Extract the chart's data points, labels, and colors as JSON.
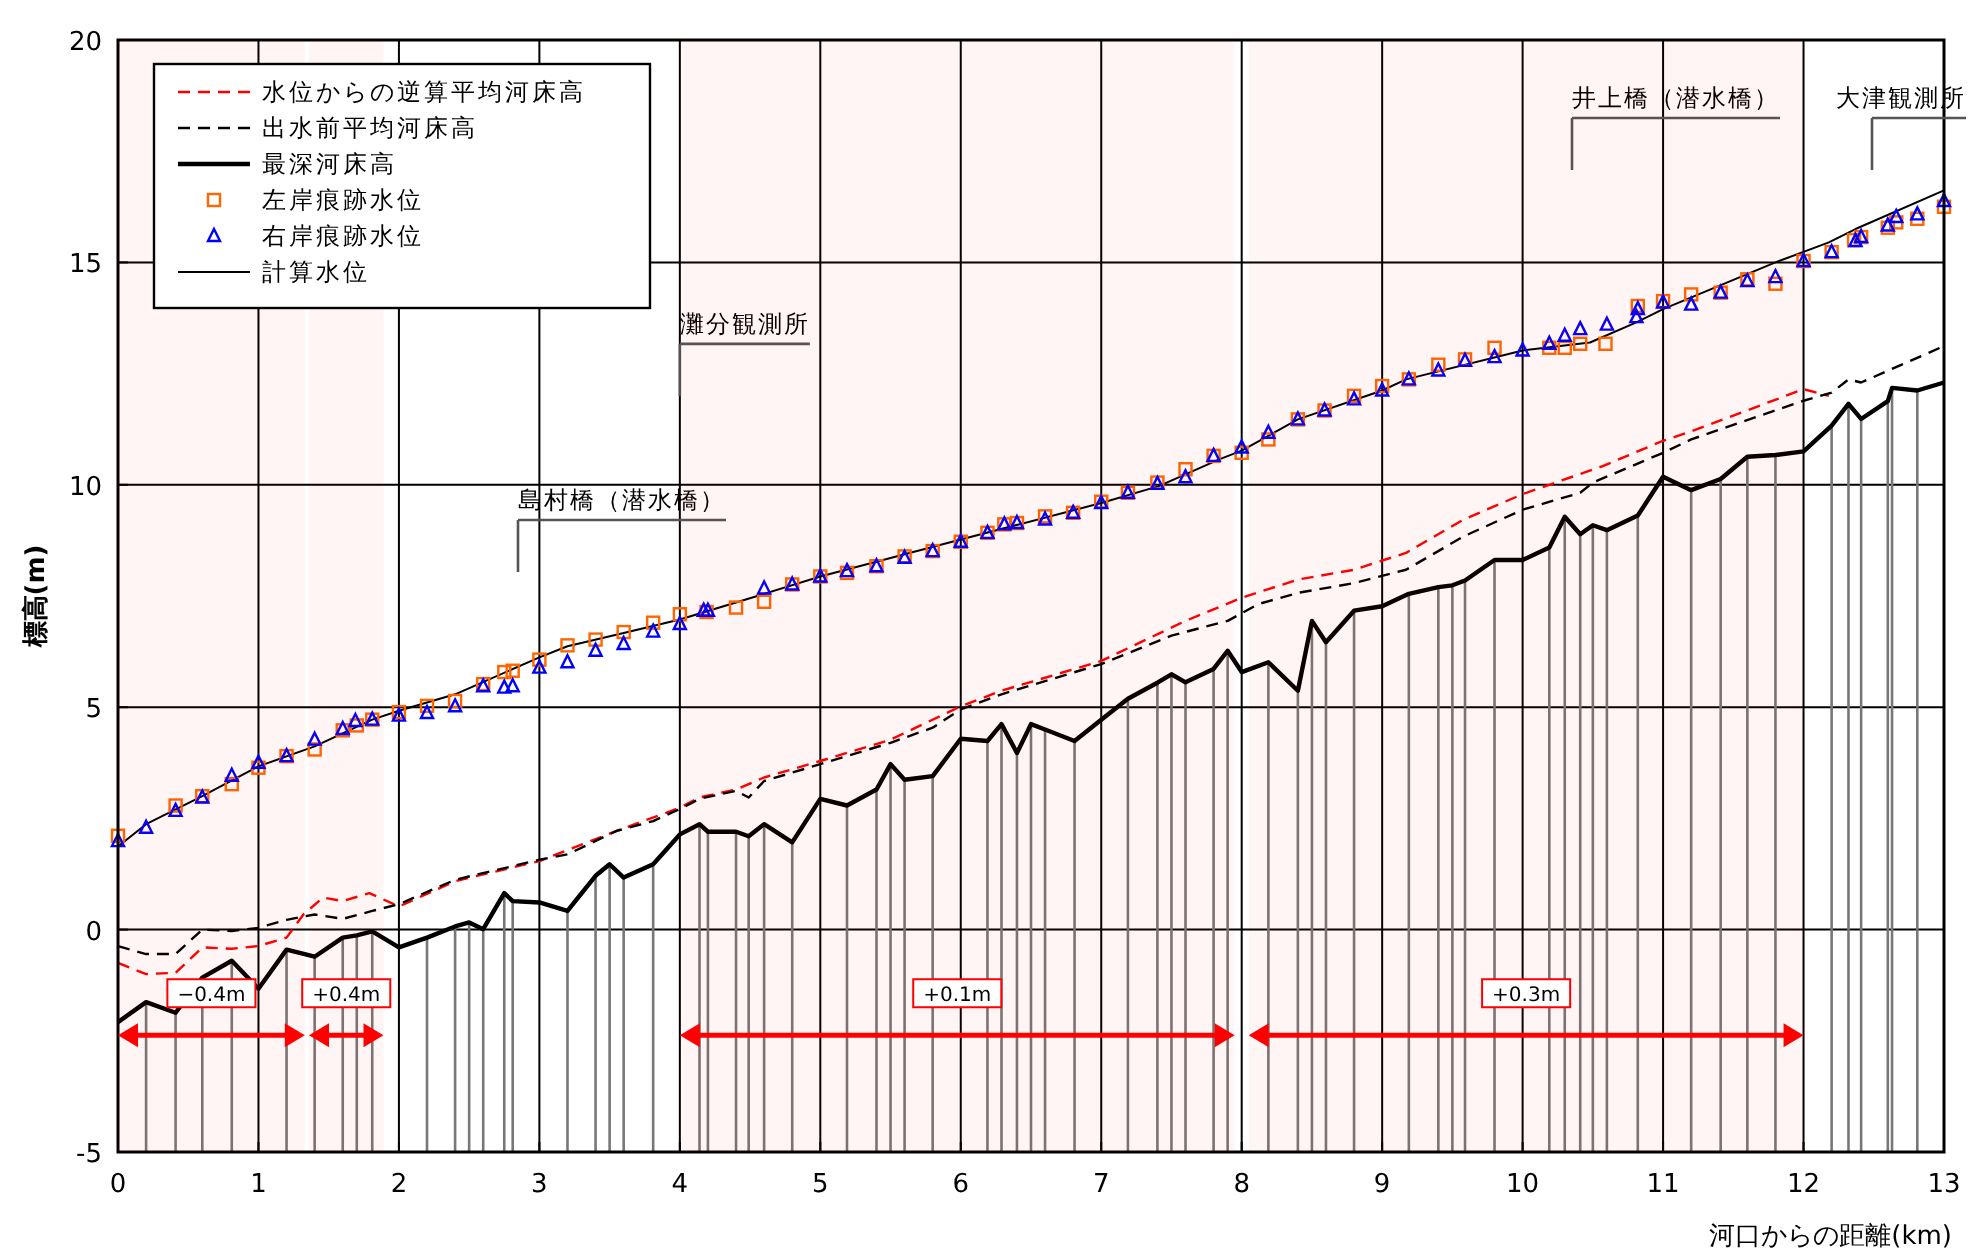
{
  "chart_data": {
    "type": "line",
    "xlabel": "河口からの距離(km)",
    "ylabel": "標高(m)",
    "xlim": [
      0,
      13
    ],
    "xticks": [
      0,
      1,
      2,
      3,
      4,
      5,
      6,
      7,
      8,
      9,
      10,
      11,
      12,
      13
    ],
    "ylim": [
      -5,
      20
    ],
    "yticks": [
      -5,
      0,
      5,
      10,
      15,
      20
    ],
    "grid": true,
    "legend": "top left",
    "series": [
      {
        "name": "水位からの逆算平均河床高",
        "line_style": "dashed",
        "color": "#ff0000",
        "x": [
          0,
          0.2,
          0.41,
          0.6,
          0.81,
          1.0,
          1.2,
          1.32,
          1.46,
          1.6,
          1.79,
          2.0,
          2.4,
          3.0,
          3.55,
          4.0,
          4.14,
          4.4,
          4.6,
          5.0,
          5.5,
          6.0,
          6.29,
          7.0,
          7.6,
          8.0,
          8.4,
          8.8,
          9.17,
          9.58,
          10.0,
          10.57,
          11.0,
          11.2,
          12.0,
          12.18
        ],
        "values": [
          -0.75,
          -1.0,
          -0.97,
          -0.4,
          -0.43,
          -0.37,
          -0.18,
          0.34,
          0.72,
          0.64,
          0.82,
          0.52,
          1.09,
          1.54,
          2.22,
          2.74,
          2.97,
          3.15,
          3.42,
          3.79,
          4.27,
          5.02,
          5.37,
          6.04,
          6.94,
          7.46,
          7.87,
          8.09,
          8.47,
          9.22,
          9.79,
          10.42,
          10.99,
          11.2,
          12.15,
          12.0
        ]
      },
      {
        "name": "出水前平均河床高",
        "line_style": "dashed",
        "color": "#000000",
        "x": [
          0,
          0.2,
          0.41,
          0.6,
          0.81,
          1.0,
          1.2,
          1.4,
          1.6,
          1.81,
          2.0,
          2.4,
          3.0,
          3.2,
          3.55,
          3.81,
          4.0,
          4.14,
          4.4,
          4.49,
          4.6,
          5.0,
          5.5,
          5.8,
          6.0,
          6.29,
          7.0,
          7.5,
          7.9,
          8.12,
          8.4,
          8.8,
          9.17,
          9.58,
          10.0,
          10.41,
          10.5,
          11.0,
          11.2,
          12.0,
          12.2,
          12.32,
          12.41,
          13.0
        ],
        "values": [
          -0.37,
          -0.55,
          -0.55,
          0,
          -0.03,
          0.04,
          0.22,
          0.34,
          0.24,
          0.42,
          0.57,
          1.12,
          1.57,
          1.69,
          2.22,
          2.44,
          2.71,
          2.94,
          3.12,
          2.97,
          3.34,
          3.72,
          4.2,
          4.54,
          4.95,
          5.29,
          5.97,
          6.61,
          6.94,
          7.32,
          7.57,
          7.79,
          8.09,
          8.84,
          9.44,
          9.82,
          10.05,
          10.72,
          11.02,
          11.89,
          12.07,
          12.37,
          12.3,
          13.12
        ]
      },
      {
        "name": "最深河床高",
        "line_style": "solid",
        "color": "#000000",
        "x": [
          0,
          0.2,
          0.41,
          0.6,
          0.81,
          1.0,
          1.2,
          1.4,
          1.6,
          1.7,
          1.81,
          2.0,
          2.2,
          2.4,
          2.5,
          2.6,
          2.75,
          2.81,
          3.0,
          3.2,
          3.4,
          3.5,
          3.6,
          3.81,
          4.0,
          4.14,
          4.2,
          4.4,
          4.49,
          4.6,
          4.8,
          5.0,
          5.19,
          5.4,
          5.5,
          5.6,
          5.8,
          6.0,
          6.19,
          6.29,
          6.4,
          6.5,
          6.6,
          6.81,
          7.0,
          7.19,
          7.4,
          7.5,
          7.6,
          7.8,
          7.9,
          8.0,
          8.19,
          8.4,
          8.5,
          8.6,
          8.8,
          9.0,
          9.19,
          9.4,
          9.5,
          9.59,
          9.8,
          10.0,
          10.19,
          10.3,
          10.41,
          10.5,
          10.6,
          10.82,
          11.0,
          11.2,
          11.41,
          11.6,
          11.8,
          12.0,
          12.2,
          12.32,
          12.41,
          12.6,
          12.63,
          12.81,
          13.0
        ],
        "values": [
          -2.08,
          -1.63,
          -1.87,
          -1.08,
          -0.7,
          -1.33,
          -0.45,
          -0.61,
          -0.18,
          -0.13,
          -0.04,
          -0.4,
          -0.18,
          0.07,
          0.16,
          0.01,
          0.82,
          0.64,
          0.61,
          0.42,
          1.21,
          1.47,
          1.17,
          1.47,
          2.14,
          2.37,
          2.2,
          2.2,
          2.1,
          2.37,
          1.96,
          2.94,
          2.79,
          3.15,
          3.72,
          3.37,
          3.45,
          4.29,
          4.24,
          4.62,
          3.97,
          4.62,
          4.5,
          4.24,
          4.72,
          5.19,
          5.55,
          5.74,
          5.56,
          5.86,
          6.27,
          5.79,
          6.01,
          5.37,
          6.94,
          6.46,
          7.17,
          7.27,
          7.55,
          7.7,
          7.74,
          7.85,
          8.31,
          8.31,
          8.59,
          9.28,
          8.89,
          9.09,
          8.98,
          9.31,
          10.18,
          9.88,
          10.13,
          10.63,
          10.67,
          10.75,
          11.33,
          11.82,
          11.48,
          11.88,
          12.18,
          12.12,
          12.3
        ]
      },
      {
        "name": "左岸痕跡水位",
        "type": "scatter",
        "marker": "square",
        "color": "#ff6600",
        "x": [
          0,
          0.41,
          0.6,
          0.81,
          1.0,
          1.2,
          1.4,
          1.6,
          1.7,
          1.81,
          2.0,
          2.2,
          2.4,
          2.6,
          2.75,
          2.81,
          3.0,
          3.2,
          3.4,
          3.6,
          3.81,
          4.0,
          4.19,
          4.4,
          4.6,
          4.8,
          5.0,
          5.19,
          5.4,
          5.6,
          5.8,
          6.0,
          6.19,
          6.31,
          6.4,
          6.6,
          6.8,
          7.0,
          7.19,
          7.4,
          7.6,
          7.8,
          8.0,
          8.19,
          8.4,
          8.59,
          8.8,
          9.0,
          9.19,
          9.4,
          9.59,
          9.8,
          10.19,
          10.3,
          10.41,
          10.59,
          10.82,
          11.0,
          11.2,
          11.41,
          11.6,
          11.8,
          12.0,
          12.2,
          12.36,
          12.41,
          12.6,
          12.66,
          12.81,
          13.0
        ],
        "values": [
          2.11,
          2.79,
          3.0,
          3.27,
          3.64,
          3.9,
          4.05,
          4.48,
          4.59,
          4.72,
          4.89,
          5.03,
          5.14,
          5.52,
          5.79,
          5.82,
          6.07,
          6.39,
          6.52,
          6.69,
          6.9,
          7.09,
          7.14,
          7.24,
          7.37,
          7.76,
          7.94,
          8.02,
          8.17,
          8.39,
          8.51,
          8.72,
          8.92,
          9.11,
          9.14,
          9.29,
          9.37,
          9.62,
          9.82,
          10.05,
          10.35,
          10.65,
          10.72,
          11.02,
          11.47,
          11.67,
          12.0,
          12.22,
          12.37,
          12.7,
          12.82,
          13.08,
          13.08,
          13.08,
          13.17,
          13.17,
          14.02,
          14.13,
          14.28,
          14.32,
          14.62,
          14.52,
          15.03,
          15.23,
          15.5,
          15.57,
          15.78,
          15.9,
          15.98,
          16.25
        ]
      },
      {
        "name": "右岸痕跡水位",
        "type": "scatter",
        "marker": "triangle",
        "color": "#0000ff",
        "x": [
          0,
          0.2,
          0.41,
          0.6,
          0.81,
          1.0,
          1.2,
          1.4,
          1.6,
          1.69,
          1.81,
          2.0,
          2.2,
          2.4,
          2.6,
          2.75,
          2.81,
          3.0,
          3.2,
          3.4,
          3.6,
          3.81,
          4.0,
          4.17,
          4.2,
          4.6,
          4.8,
          5.0,
          5.19,
          5.4,
          5.6,
          5.8,
          6.0,
          6.19,
          6.31,
          6.4,
          6.6,
          6.8,
          7.0,
          7.19,
          7.4,
          7.6,
          7.8,
          8.0,
          8.19,
          8.4,
          8.59,
          8.8,
          9.0,
          9.19,
          9.4,
          9.59,
          9.8,
          10.0,
          10.19,
          10.3,
          10.41,
          10.6,
          10.81,
          10.82,
          11.0,
          11.2,
          11.41,
          11.6,
          11.8,
          12.0,
          12.2,
          12.37,
          12.41,
          12.6,
          12.66,
          12.81,
          13.0
        ],
        "values": [
          1.99,
          2.29,
          2.67,
          2.97,
          3.46,
          3.75,
          3.9,
          4.27,
          4.51,
          4.69,
          4.72,
          4.81,
          4.87,
          5.02,
          5.47,
          5.44,
          5.47,
          5.89,
          6.01,
          6.27,
          6.42,
          6.7,
          6.87,
          7.17,
          7.17,
          7.67,
          7.76,
          7.94,
          8.06,
          8.17,
          8.36,
          8.51,
          8.72,
          8.92,
          9.11,
          9.14,
          9.22,
          9.37,
          9.59,
          9.82,
          10.02,
          10.17,
          10.65,
          10.84,
          11.17,
          11.47,
          11.67,
          11.92,
          12.12,
          12.37,
          12.57,
          12.79,
          12.87,
          13.02,
          13.17,
          13.35,
          13.5,
          13.6,
          13.77,
          13.95,
          14.1,
          14.05,
          14.32,
          14.58,
          14.67,
          15.03,
          15.23,
          15.48,
          15.57,
          15.83,
          16.02,
          16.08,
          16.38
        ]
      },
      {
        "name": "計算水位",
        "line_style": "solid",
        "color": "#000000",
        "x": [
          0,
          0.2,
          0.6,
          1.0,
          1.4,
          1.81,
          2.0,
          2.4,
          3.0,
          3.2,
          3.6,
          4.0,
          4.54,
          5.0,
          6.0,
          7.0,
          7.41,
          7.84,
          8.0,
          8.19,
          8.4,
          9.0,
          9.17,
          10.0,
          10.48,
          10.81,
          11.0,
          11.8,
          12.18,
          12.37,
          13.0
        ],
        "values": [
          1.87,
          2.37,
          3.0,
          3.67,
          4.12,
          4.72,
          4.92,
          5.29,
          6.12,
          6.37,
          6.67,
          6.97,
          7.49,
          7.94,
          8.77,
          9.59,
          9.97,
          10.57,
          10.77,
          11.1,
          11.47,
          12.12,
          12.37,
          13.02,
          13.2,
          13.65,
          13.95,
          15.0,
          15.45,
          15.75,
          16.62
        ]
      }
    ],
    "annotations": [
      "島村橋（潜水橋）",
      {
        "text": "灘分観測所",
        "x": 4.0,
        "y": 12.0
      },
      "井上橋（潜水橋）",
      "大津観測所"
    ],
    "ref_lines": [
      {
        "axis": "x",
        "value": 0.2,
        "color": "#777777"
      },
      {
        "axis": "x",
        "value": 0.41,
        "color": "#777777"
      },
      {
        "axis": "x",
        "value": 0.6,
        "color": "#777777"
      },
      {
        "axis": "x",
        "value": 0.81,
        "color": "#777777"
      },
      {
        "axis": "x",
        "value": 1.2,
        "color": "#777777"
      },
      {
        "axis": "x",
        "value": 1.4,
        "color": "#777777"
      },
      {
        "axis": "x",
        "value": 1.6,
        "color": "#777777"
      },
      {
        "axis": "x",
        "value": 1.7,
        "color": "#777777"
      },
      {
        "axis": "x",
        "value": 1.81,
        "color": "#777777"
      },
      {
        "axis": "x",
        "value": 2.2,
        "color": "#777777"
      },
      {
        "axis": "x",
        "value": 2.4,
        "color": "#777777"
      },
      {
        "axis": "x",
        "value": 2.5,
        "color": "#777777"
      },
      {
        "axis": "x",
        "value": 2.6,
        "color": "#777777"
      },
      {
        "axis": "x",
        "value": 2.75,
        "color": "#777777"
      },
      {
        "axis": "x",
        "value": 2.81,
        "color": "#777777"
      },
      {
        "axis": "x",
        "value": 3.2,
        "color": "#777777"
      },
      {
        "axis": "x",
        "value": 3.4,
        "color": "#777777"
      },
      {
        "axis": "x",
        "value": 3.5,
        "color": "#777777"
      },
      {
        "axis": "x",
        "value": 3.6,
        "color": "#777777"
      },
      {
        "axis": "x",
        "value": 3.81,
        "color": "#777777"
      },
      {
        "axis": "x",
        "value": 4.14,
        "color": "#777777"
      },
      {
        "axis": "x",
        "value": 4.2,
        "color": "#777777"
      },
      {
        "axis": "x",
        "value": 4.4,
        "color": "#777777"
      },
      {
        "axis": "x",
        "value": 4.49,
        "color": "#777777"
      },
      {
        "axis": "x",
        "value": 4.6,
        "color": "#777777"
      },
      {
        "axis": "x",
        "value": 4.8,
        "color": "#777777"
      },
      {
        "axis": "x",
        "value": 5.19,
        "color": "#777777"
      },
      {
        "axis": "x",
        "value": 5.4,
        "color": "#777777"
      },
      {
        "axis": "x",
        "value": 5.5,
        "color": "#777777"
      },
      {
        "axis": "x",
        "value": 5.6,
        "color": "#777777"
      },
      {
        "axis": "x",
        "value": 5.8,
        "color": "#777777"
      },
      {
        "axis": "x",
        "value": 6.19,
        "color": "#777777"
      },
      {
        "axis": "x",
        "value": 6.29,
        "color": "#777777"
      },
      {
        "axis": "x",
        "value": 6.4,
        "color": "#777777"
      },
      {
        "axis": "x",
        "value": 6.5,
        "color": "#777777"
      },
      {
        "axis": "x",
        "value": 6.6,
        "color": "#777777"
      },
      {
        "axis": "x",
        "value": 6.81,
        "color": "#777777"
      },
      {
        "axis": "x",
        "value": 7.19,
        "color": "#777777"
      },
      {
        "axis": "x",
        "value": 7.4,
        "color": "#777777"
      },
      {
        "axis": "x",
        "value": 7.5,
        "color": "#777777"
      },
      {
        "axis": "x",
        "value": 7.6,
        "color": "#777777"
      },
      {
        "axis": "x",
        "value": 7.8,
        "color": "#777777"
      },
      {
        "axis": "x",
        "value": 7.9,
        "color": "#777777"
      },
      {
        "axis": "x",
        "value": 8.19,
        "color": "#777777"
      },
      {
        "axis": "x",
        "value": 8.4,
        "color": "#777777"
      },
      {
        "axis": "x",
        "value": 8.5,
        "color": "#777777"
      },
      {
        "axis": "x",
        "value": 8.6,
        "color": "#777777"
      },
      {
        "axis": "x",
        "value": 8.8,
        "color": "#777777"
      },
      {
        "axis": "x",
        "value": 9.19,
        "color": "#777777"
      },
      {
        "axis": "x",
        "value": 9.4,
        "color": "#777777"
      },
      {
        "axis": "x",
        "value": 9.5,
        "color": "#777777"
      },
      {
        "axis": "x",
        "value": 9.59,
        "color": "#777777"
      },
      {
        "axis": "x",
        "value": 9.8,
        "color": "#777777"
      },
      {
        "axis": "x",
        "value": 10.19,
        "color": "#777777"
      },
      {
        "axis": "x",
        "value": 10.3,
        "color": "#777777"
      },
      {
        "axis": "x",
        "value": 10.41,
        "color": "#777777"
      },
      {
        "axis": "x",
        "value": 10.5,
        "color": "#777777"
      },
      {
        "axis": "x",
        "value": 10.6,
        "color": "#777777"
      },
      {
        "axis": "x",
        "value": 10.82,
        "color": "#777777"
      },
      {
        "axis": "x",
        "value": 11.2,
        "color": "#777777"
      },
      {
        "axis": "x",
        "value": 11.41,
        "color": "#777777"
      },
      {
        "axis": "x",
        "value": 11.6,
        "color": "#777777"
      },
      {
        "axis": "x",
        "value": 11.8,
        "color": "#777777"
      },
      {
        "axis": "x",
        "value": 12.2,
        "color": "#777777"
      },
      {
        "axis": "x",
        "value": 12.32,
        "color": "#777777"
      },
      {
        "axis": "x",
        "value": 12.41,
        "color": "#777777"
      },
      {
        "axis": "x",
        "value": 12.6,
        "color": "#777777"
      },
      {
        "axis": "x",
        "value": 12.63,
        "color": "#777777"
      },
      {
        "axis": "x",
        "value": 12.81,
        "color": "#777777"
      }
    ],
    "bands": [
      {
        "axis": "x",
        "from": 0,
        "to": 1.33,
        "label": "−0.4m",
        "color": "#ff0000"
      },
      {
        "axis": "x",
        "from": 1.36,
        "to": 1.89,
        "label": "+0.4m",
        "color": "#ff0000"
      },
      {
        "axis": "x",
        "from": 4.0,
        "to": 7.95,
        "label": "+0.1m",
        "color": "#ff0000"
      },
      {
        "axis": "x",
        "from": 8.05,
        "to": 12.0,
        "label": "+0.3m",
        "color": "#ff0000"
      }
    ]
  }
}
